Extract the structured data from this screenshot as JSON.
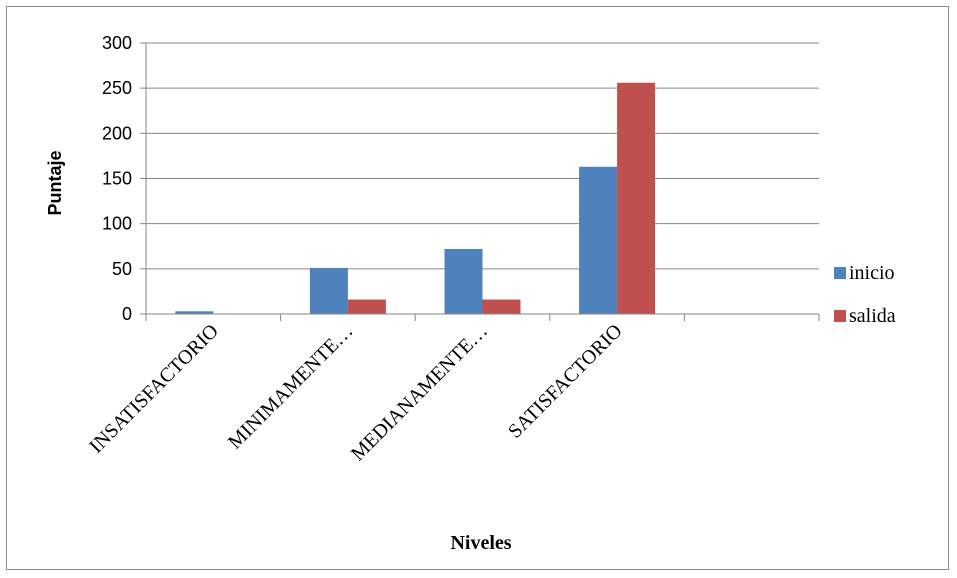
{
  "chart_data": {
    "type": "bar",
    "title": "",
    "xlabel": "Niveles",
    "ylabel": "Puntaje",
    "ylim": [
      0,
      300
    ],
    "yticks": [
      0,
      50,
      100,
      150,
      200,
      250,
      300
    ],
    "categories": [
      "INSATISFACTORIO",
      "MINIMAMENTE…",
      "MEDIANAMENTE…",
      "SATISFACTORIO",
      ""
    ],
    "series": [
      {
        "name": "inicio",
        "color": "#4f81bd",
        "values": [
          3,
          51,
          72,
          163,
          null
        ]
      },
      {
        "name": "salida",
        "color": "#c0504d",
        "values": [
          0,
          16,
          16,
          256,
          null
        ]
      }
    ],
    "grid": true,
    "legend_position": "right"
  }
}
